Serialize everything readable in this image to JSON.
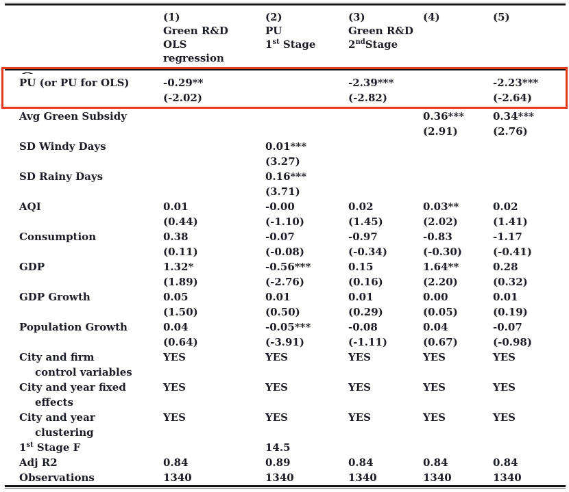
{
  "colors": {
    "ink": "#1c1c26",
    "rule": "#161616",
    "highlight_box": "#e5391b",
    "background": "#ffffff"
  },
  "annotation": {
    "type": "highlight-box",
    "color": "#e5391b",
    "target_row": "pu"
  },
  "header": {
    "cols": [
      {
        "num": "(1)",
        "line1": "Green R&D",
        "line2": "OLS",
        "line3": "regression"
      },
      {
        "num": "(2)",
        "line1": "PU",
        "line2_pre": "1",
        "line2_sup": "st",
        "line2_post": " Stage"
      },
      {
        "num": "(3)",
        "line1": "Green R&D",
        "line2_pre": "2",
        "line2_sup": "nd",
        "line2_post": "Stage"
      },
      {
        "num": "(4)"
      },
      {
        "num": "(5)"
      }
    ]
  },
  "rows": [
    {
      "id": "pu",
      "highlight": true,
      "label_parts": [
        {
          "text": "PU",
          "hat": true
        },
        {
          "text": " (or PU for OLS)"
        }
      ],
      "coefs": [
        "-0.29**",
        "",
        "-2.39***",
        "",
        "-2.23***"
      ],
      "tstats": [
        "(-2.02)",
        "",
        "(-2.82)",
        "",
        "(-2.64)"
      ]
    },
    {
      "id": "avg-green-subsidy",
      "label_parts": [
        {
          "text": "Avg Green Subsidy"
        }
      ],
      "coefs": [
        "",
        "",
        "",
        "0.36***",
        "0.34***"
      ],
      "tstats": [
        "",
        "",
        "",
        "(2.91)",
        "(2.76)"
      ]
    },
    {
      "id": "sd-windy-days",
      "label_parts": [
        {
          "text": "SD Windy Days"
        }
      ],
      "coefs": [
        "",
        "0.01***",
        "",
        "",
        ""
      ],
      "tstats": [
        "",
        "(3.27)",
        "",
        "",
        ""
      ]
    },
    {
      "id": "sd-rainy-days",
      "label_parts": [
        {
          "text": "SD Rainy Days"
        }
      ],
      "coefs": [
        "",
        "0.16***",
        "",
        "",
        ""
      ],
      "tstats": [
        "",
        "(3.71)",
        "",
        "",
        ""
      ]
    },
    {
      "id": "aqi",
      "label_parts": [
        {
          "text": "AQI"
        }
      ],
      "coefs": [
        "0.01",
        "-0.00",
        "0.02",
        "0.03**",
        "0.02"
      ],
      "tstats": [
        "(0.44)",
        "(-1.10)",
        "(1.45)",
        "(2.02)",
        "(1.41)"
      ]
    },
    {
      "id": "consumption",
      "label_parts": [
        {
          "text": "Consumption"
        }
      ],
      "coefs": [
        "0.38",
        "-0.07",
        "-0.97",
        "-0.83",
        "-1.17"
      ],
      "tstats": [
        "(0.11)",
        "(-0.08)",
        "(-0.34)",
        "(-0.30)",
        "(-0.41)"
      ]
    },
    {
      "id": "gdp",
      "label_parts": [
        {
          "text": "GDP"
        }
      ],
      "coefs": [
        "1.32*",
        "-0.56***",
        "0.15",
        "1.64**",
        "0.28"
      ],
      "tstats": [
        "(1.89)",
        "(-2.76)",
        "(0.16)",
        "(2.20)",
        "(0.32)"
      ]
    },
    {
      "id": "gdp-growth",
      "label_parts": [
        {
          "text": "GDP Growth"
        }
      ],
      "coefs": [
        "0.05",
        "0.01",
        "0.01",
        "0.00",
        "0.01"
      ],
      "tstats": [
        "(1.50)",
        "(0.50)",
        "(0.29)",
        "(0.05)",
        "(0.19)"
      ]
    },
    {
      "id": "population-growth",
      "label_parts": [
        {
          "text": "Population Growth"
        }
      ],
      "coefs": [
        "0.04",
        "-0.05***",
        "-0.08",
        "0.04",
        "-0.07"
      ],
      "tstats": [
        "(0.64)",
        "(-3.91)",
        "(-1.11)",
        "(0.67)",
        "(-0.98)"
      ]
    },
    {
      "id": "city-firm-control-variables",
      "label_parts": [
        {
          "text": "City and firm"
        }
      ],
      "label2": "control variables",
      "coefs": [
        "YES",
        "YES",
        "YES",
        "YES",
        "YES"
      ]
    },
    {
      "id": "city-year-fixed-effects",
      "label_parts": [
        {
          "text": "City and year fixed"
        }
      ],
      "label2": "effects",
      "coefs": [
        "YES",
        "YES",
        "YES",
        "YES",
        "YES"
      ]
    },
    {
      "id": "city-year-clustering",
      "label_parts": [
        {
          "text": "City and year"
        }
      ],
      "label2": "clustering",
      "coefs": [
        "YES",
        "YES",
        "YES",
        "YES",
        "YES"
      ]
    },
    {
      "id": "first-stage-f",
      "label_parts": [
        {
          "text": "1"
        },
        {
          "text": "st",
          "sup": true
        },
        {
          "text": " Stage F"
        }
      ],
      "coefs": [
        "",
        "14.5",
        "",
        "",
        ""
      ]
    },
    {
      "id": "adj-r2",
      "label_parts": [
        {
          "text": "Adj R2"
        }
      ],
      "coefs": [
        "0.84",
        "0.89",
        "0.84",
        "0.84",
        "0.84"
      ]
    },
    {
      "id": "observations",
      "label_parts": [
        {
          "text": "Observations"
        }
      ],
      "coefs": [
        "1340",
        "1340",
        "1340",
        "1340",
        "1340"
      ]
    }
  ]
}
